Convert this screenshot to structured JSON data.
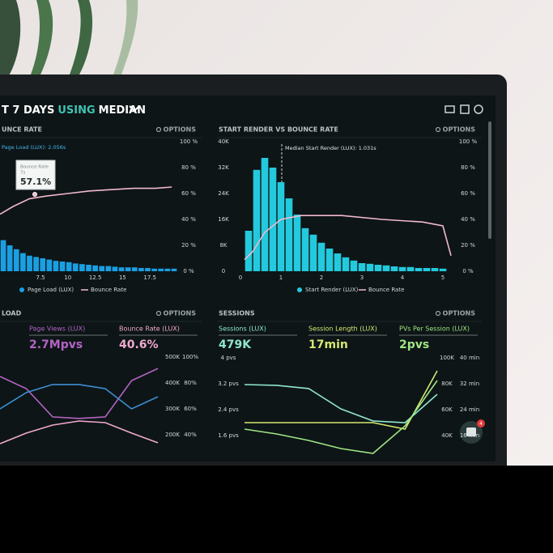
{
  "header": {
    "title_parts": [
      "T 7 DAYS",
      "USING",
      "MEDIAN"
    ]
  },
  "badge": "4",
  "panels": [
    {
      "title": "UNCE RATE",
      "options": "OPTIONS",
      "annotation": "Page Load (LUX): 2.056s",
      "tooltip": {
        "label": "Bounce Rate",
        "sub": "7s",
        "value": "57.1%"
      },
      "chart": {
        "type": "bar-line",
        "bins": [
          3.8,
          4.4,
          5,
          5.6,
          6.2,
          6.8,
          7.4,
          8,
          8.6,
          9.2,
          9.8,
          10.4,
          11,
          11.6,
          12.2,
          12.8,
          13.4,
          14,
          14.6,
          15.2,
          15.8,
          16.4,
          17,
          17.6,
          18.2,
          18.8,
          19.4,
          20
        ],
        "bars": {
          "name": "Page Load (LUX)",
          "color": "#1a9fe2",
          "values": [
            24,
            20,
            17,
            14,
            12,
            11,
            10,
            9,
            8,
            7.5,
            7,
            6,
            5.5,
            5,
            4.5,
            4,
            4,
            3.5,
            3,
            3,
            3,
            2.5,
            2.5,
            2,
            2,
            2,
            2
          ]
        },
        "line": {
          "name": "Bounce Rate",
          "color": "#f2b9cb",
          "x": [
            3.8,
            5,
            6.5,
            8,
            10,
            12,
            14,
            16,
            18,
            19.5
          ],
          "values": [
            44,
            50,
            56,
            58,
            60,
            62,
            63,
            64,
            64,
            65
          ]
        },
        "xlim": [
          3.8,
          20
        ],
        "xticks": [
          7.5,
          10,
          12.5,
          15,
          17.5
        ],
        "ylim": [
          0,
          100
        ],
        "yticks": [
          {
            "value": 100,
            "label": "100 %"
          },
          {
            "value": 80,
            "label": "80 %"
          },
          {
            "value": 60,
            "label": "60 %"
          },
          {
            "value": 40,
            "label": "40 %"
          },
          {
            "value": 20,
            "label": "20 %"
          },
          {
            "value": 0,
            "label": "0 %"
          }
        ]
      }
    },
    {
      "title": "START RENDER VS BOUNCE RATE",
      "options": "OPTIONS",
      "annotation": "Median Start Render (LUX): 1.031s",
      "chart": {
        "type": "bar-line",
        "bins": [
          0.1,
          0.3,
          0.5,
          0.7,
          0.9,
          1.1,
          1.3,
          1.5,
          1.7,
          1.9,
          2.1,
          2.3,
          2.5,
          2.7,
          2.9,
          3.1,
          3.3,
          3.5,
          3.7,
          3.9,
          4.1,
          4.3,
          4.5,
          4.7,
          4.9,
          5.1
        ],
        "bars": {
          "name": "Start Render (LUX)",
          "color": "#23c9dc",
          "values": [
            12500,
            31300,
            35000,
            32000,
            27500,
            22500,
            17500,
            13300,
            11300,
            8800,
            7000,
            5500,
            4300,
            3300,
            2500,
            2300,
            2000,
            1800,
            1500,
            1300,
            1300,
            1000,
            1000,
            1000,
            800
          ]
        },
        "line": {
          "name": "Bounce Rate",
          "color": "#f2b9cb",
          "axis": "y2",
          "x": [
            0.1,
            0.3,
            0.6,
            1,
            1.5,
            2.5,
            3.5,
            4.5,
            5,
            5.2
          ],
          "values": [
            9,
            15,
            30,
            40,
            43,
            43,
            40,
            38,
            35,
            12
          ]
        },
        "xlim": [
          0,
          5
        ],
        "xticks": [
          0,
          1,
          2,
          3,
          4,
          5
        ],
        "ylim": [
          0,
          40000
        ],
        "yticks": [
          {
            "value": 40000,
            "label": "40K"
          },
          {
            "value": 32000,
            "label": "32K"
          },
          {
            "value": 24000,
            "label": "24K"
          },
          {
            "value": 16000,
            "label": "16K"
          },
          {
            "value": 8000,
            "label": "8K"
          },
          0
        ],
        "y2lim": [
          0,
          100
        ],
        "y2ticks": [
          {
            "value": 100,
            "label": "100 %"
          },
          {
            "value": 80,
            "label": "80 %"
          },
          {
            "value": 60,
            "label": "60 %"
          },
          {
            "value": 40,
            "label": "40 %"
          },
          {
            "value": 20,
            "label": "20 %"
          },
          {
            "value": 0,
            "label": "0 %"
          }
        ]
      }
    },
    {
      "title": "LOAD",
      "options": "OPTIONS",
      "stats": [
        {
          "label": "Page Views (LUX)",
          "value": "2.7Mpvs",
          "color": "#b463c4"
        },
        {
          "label": "Bounce Rate (LUX)",
          "value": "40.6%",
          "color": "#f0a9cc"
        }
      ],
      "chart": {
        "type": "line",
        "x": [
          0,
          1,
          2,
          3,
          4,
          5,
          6
        ],
        "xlim": [
          0,
          6
        ],
        "ylim": [
          200000,
          500000
        ],
        "yticks": [
          {
            "value": 500000,
            "label": "500K"
          },
          {
            "value": 400000,
            "label": "400K"
          },
          {
            "value": 300000,
            "label": "300K"
          },
          {
            "value": 200000,
            "label": "200K"
          }
        ],
        "y2lim": [
          40,
          100
        ],
        "y2ticks": [
          {
            "value": 100,
            "label": "100%"
          },
          {
            "value": 80,
            "label": "80%"
          },
          {
            "value": 60,
            "label": "60%"
          },
          {
            "value": 40,
            "label": "40%"
          }
        ],
        "series": [
          {
            "name": "Page Views (LUX)",
            "color": "#b463c4",
            "values": [
              425000,
              378000,
              269000,
              263000,
              269000,
              409000,
              456000
            ]
          },
          {
            "color": "#3d8fd2",
            "values": [
              300000,
              363000,
              394000,
              394000,
              378000,
              300000,
              347000
            ]
          },
          {
            "name": "Bounce Rate (LUX)",
            "color": "#f0a9cc",
            "axis": "y2",
            "values": [
              33.1,
              41.3,
              47.5,
              50.6,
              49.4,
              41.3,
              33.8
            ]
          }
        ]
      }
    },
    {
      "title": "SESSIONS",
      "options": "OPTIONS",
      "stats": [
        {
          "label": "Sessions (LUX)",
          "value": "479K",
          "color": "#8fe6cf"
        },
        {
          "label": "Session Length (LUX)",
          "value": "17min",
          "color": "#d6e870"
        },
        {
          "label": "PVs Per Session (LUX)",
          "value": "2pvs",
          "color": "#9fe682"
        }
      ],
      "chart": {
        "type": "line",
        "x": [
          0,
          1,
          2,
          3,
          4,
          5,
          6
        ],
        "xlim": [
          0,
          6
        ],
        "ylim": [
          1.6,
          4
        ],
        "yticks": [
          {
            "value": 4,
            "label": "4 pvs"
          },
          {
            "value": 3.2,
            "label": "3.2 pvs"
          },
          {
            "value": 2.4,
            "label": "2.4 pvs"
          },
          {
            "value": 1.6,
            "label": "1.6 pvs"
          }
        ],
        "y2lim": [
          40000,
          100000
        ],
        "y2ticks": [
          {
            "value": 100000,
            "label": "100K"
          },
          {
            "value": 80000,
            "label": "80K"
          },
          {
            "value": 60000,
            "label": "60K"
          },
          {
            "value": 40000,
            "label": "40K"
          }
        ],
        "y3lim": [
          16,
          40
        ],
        "y3ticks": [
          {
            "value": 40,
            "label": "40 min"
          },
          {
            "value": 32,
            "label": "32 min"
          },
          {
            "value": 24,
            "label": "24 min"
          },
          {
            "value": 16,
            "label": "16 min"
          }
        ],
        "series": [
          {
            "name": "Sessions (LUX)",
            "color": "#8fe6cf",
            "axis": "y2",
            "values": [
              79400,
              78800,
              76300,
              60600,
              51300,
              50000,
              71900
            ]
          },
          {
            "name": "Session Length (LUX)",
            "color": "#d6e870",
            "axis": "y3",
            "values": [
              20,
              20,
              20,
              20,
              20,
              18,
              36
            ]
          },
          {
            "name": "PVs Per Session (LUX)",
            "color": "#9fe682",
            "values": [
              1.8,
              1.65,
              1.45,
              1.2,
              1.05,
              1.9,
              3.3
            ]
          }
        ]
      }
    }
  ]
}
